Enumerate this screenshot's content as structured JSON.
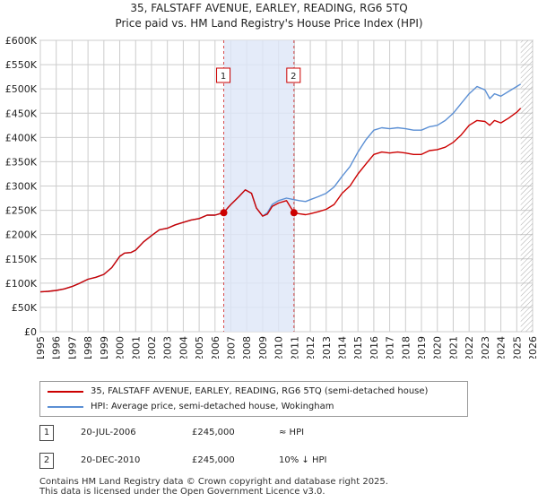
{
  "title_line1": "35, FALSTAFF AVENUE, EARLEY, READING, RG6 5TQ",
  "title_line2": "Price paid vs. HM Land Registry's House Price Index (HPI)",
  "colors": {
    "property": "#cc0000",
    "hpi": "#5b8fd4",
    "shade": "#dde6f7",
    "grid": "#cccccc",
    "future_hatch": "#999999"
  },
  "chart_data": {
    "type": "line",
    "title": "Price paid vs. HM Land Registry's House Price Index (HPI)",
    "xlabel": "",
    "ylabel": "",
    "xlim": [
      1995,
      2026
    ],
    "ylim": [
      0,
      600000
    ],
    "grid": true,
    "y_ticks": [
      {
        "value": 0,
        "label": "£0"
      },
      {
        "value": 50000,
        "label": "£50K"
      },
      {
        "value": 100000,
        "label": "£100K"
      },
      {
        "value": 150000,
        "label": "£150K"
      },
      {
        "value": 200000,
        "label": "£200K"
      },
      {
        "value": 250000,
        "label": "£250K"
      },
      {
        "value": 300000,
        "label": "£300K"
      },
      {
        "value": 350000,
        "label": "£350K"
      },
      {
        "value": 400000,
        "label": "£400K"
      },
      {
        "value": 450000,
        "label": "£450K"
      },
      {
        "value": 500000,
        "label": "£500K"
      },
      {
        "value": 550000,
        "label": "£550K"
      },
      {
        "value": 600000,
        "label": "£600K"
      }
    ],
    "x_ticks": [
      "1995",
      "1996",
      "1997",
      "1998",
      "1999",
      "2000",
      "2001",
      "2002",
      "2003",
      "2004",
      "2005",
      "2006",
      "2007",
      "2008",
      "2009",
      "2010",
      "2011",
      "2012",
      "2013",
      "2014",
      "2015",
      "2016",
      "2017",
      "2018",
      "2019",
      "2020",
      "2021",
      "2022",
      "2023",
      "2024",
      "2025",
      "2026"
    ],
    "shaded_region": [
      2006.55,
      2010.97
    ],
    "data_end": 2025.25,
    "series": [
      {
        "name": "35, FALSTAFF AVENUE, EARLEY, READING, RG6 5TQ (semi-detached house)",
        "color": "#cc0000",
        "x": [
          1995.0,
          1995.5,
          1996.0,
          1996.5,
          1997.0,
          1997.5,
          1998.0,
          1998.5,
          1999.0,
          1999.5,
          2000.0,
          2000.3,
          2000.7,
          2001.0,
          2001.5,
          2002.0,
          2002.5,
          2003.0,
          2003.5,
          2004.0,
          2004.5,
          2005.0,
          2005.5,
          2006.0,
          2006.3,
          2006.55,
          2006.8,
          2007.0,
          2007.5,
          2007.9,
          2008.3,
          2008.6,
          2009.0,
          2009.3,
          2009.6,
          2010.0,
          2010.5,
          2010.97,
          2011.3,
          2011.7,
          2012.0,
          2012.5,
          2013.0,
          2013.5,
          2014.0,
          2014.5,
          2015.0,
          2015.5,
          2016.0,
          2016.5,
          2017.0,
          2017.5,
          2018.0,
          2018.5,
          2019.0,
          2019.5,
          2020.0,
          2020.5,
          2021.0,
          2021.5,
          2022.0,
          2022.5,
          2023.0,
          2023.3,
          2023.6,
          2024.0,
          2024.5,
          2025.0,
          2025.25
        ],
        "values": [
          82000,
          83000,
          85000,
          88000,
          93000,
          100000,
          108000,
          112000,
          118000,
          132000,
          155000,
          162000,
          163000,
          168000,
          185000,
          198000,
          210000,
          213000,
          220000,
          225000,
          230000,
          233000,
          240000,
          240000,
          243000,
          245000,
          255000,
          262000,
          278000,
          292000,
          285000,
          255000,
          238000,
          242000,
          258000,
          265000,
          270000,
          245000,
          243000,
          241000,
          243000,
          247000,
          252000,
          262000,
          285000,
          300000,
          325000,
          345000,
          365000,
          370000,
          368000,
          370000,
          368000,
          365000,
          365000,
          373000,
          375000,
          380000,
          390000,
          405000,
          425000,
          435000,
          433000,
          425000,
          435000,
          430000,
          440000,
          452000,
          460000
        ]
      },
      {
        "name": "HPI: Average price, semi-detached house, Wokingham",
        "color": "#5b8fd4",
        "x": [
          1995.0,
          1995.5,
          1996.0,
          1996.5,
          1997.0,
          1997.5,
          1998.0,
          1998.5,
          1999.0,
          1999.5,
          2000.0,
          2000.3,
          2000.7,
          2001.0,
          2001.5,
          2002.0,
          2002.5,
          2003.0,
          2003.5,
          2004.0,
          2004.5,
          2005.0,
          2005.5,
          2006.0,
          2006.3,
          2006.55,
          2006.8,
          2007.0,
          2007.5,
          2007.9,
          2008.3,
          2008.6,
          2009.0,
          2009.3,
          2009.6,
          2010.0,
          2010.5,
          2010.97,
          2011.3,
          2011.7,
          2012.0,
          2012.5,
          2013.0,
          2013.5,
          2014.0,
          2014.5,
          2015.0,
          2015.5,
          2016.0,
          2016.5,
          2017.0,
          2017.5,
          2018.0,
          2018.5,
          2019.0,
          2019.5,
          2020.0,
          2020.5,
          2021.0,
          2021.5,
          2022.0,
          2022.5,
          2023.0,
          2023.3,
          2023.6,
          2024.0,
          2024.5,
          2025.0,
          2025.25
        ],
        "values": [
          82000,
          83000,
          85000,
          88000,
          93000,
          100000,
          108000,
          112000,
          118000,
          132000,
          155000,
          162000,
          163000,
          168000,
          185000,
          198000,
          210000,
          213000,
          220000,
          225000,
          230000,
          233000,
          240000,
          240000,
          243000,
          245000,
          255000,
          262000,
          278000,
          292000,
          285000,
          255000,
          238000,
          245000,
          262000,
          270000,
          275000,
          272000,
          270000,
          268000,
          272000,
          278000,
          285000,
          298000,
          320000,
          340000,
          370000,
          395000,
          415000,
          420000,
          418000,
          420000,
          418000,
          415000,
          415000,
          422000,
          425000,
          435000,
          450000,
          470000,
          490000,
          505000,
          498000,
          480000,
          490000,
          485000,
          495000,
          505000,
          510000
        ]
      }
    ],
    "annotations": [
      {
        "label": "1",
        "x": 2006.55,
        "value": 245000
      },
      {
        "label": "2",
        "x": 2010.97,
        "value": 245000
      }
    ]
  },
  "legend": {
    "property": "35, FALSTAFF AVENUE, EARLEY, READING, RG6 5TQ (semi-detached house)",
    "hpi": "HPI: Average price, semi-detached house, Wokingham"
  },
  "sales": [
    {
      "num": "1",
      "date": "20-JUL-2006",
      "price": "£245,000",
      "hpi": "≈ HPI"
    },
    {
      "num": "2",
      "date": "20-DEC-2010",
      "price": "£245,000",
      "hpi": "10% ↓ HPI"
    }
  ],
  "footer_line1": "Contains HM Land Registry data © Crown copyright and database right 2025.",
  "footer_line2": "This data is licensed under the Open Government Licence v3.0."
}
